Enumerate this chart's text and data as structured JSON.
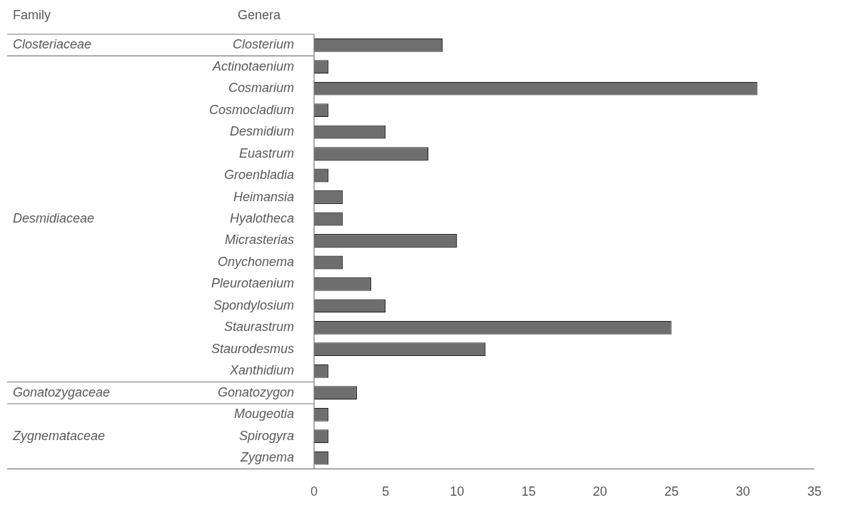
{
  "chart_data": {
    "type": "bar",
    "orientation": "horizontal",
    "ylabel": "Genera",
    "categories": [
      "Closterium",
      "Actinotaenium",
      "Cosmarium",
      "Cosmocladium",
      "Desmidium",
      "Euastrum",
      "Groenbladia",
      "Heimansia",
      "Hyalotheca",
      "Micrasterias",
      "Onychonema",
      "Pleurotaenium",
      "Spondylosium",
      "Staurastrum",
      "Staurodesmus",
      "Xanthidium",
      "Gonatozygon",
      "Mougeotia",
      "Spirogyra",
      "Zygnema"
    ],
    "values": [
      9,
      1,
      31,
      1,
      5,
      8,
      1,
      2,
      2,
      10,
      2,
      4,
      5,
      25,
      12,
      1,
      3,
      1,
      1,
      1
    ],
    "color": "#6e6e6e",
    "xlim": [
      0,
      35
    ],
    "xticks": [
      0,
      5,
      10,
      15,
      20,
      25,
      30,
      35
    ],
    "grid": false,
    "legend": false,
    "annotations": [
      "Family",
      "Closteriaceae",
      "Desmidiaceae",
      "Gonatozygaceae",
      "Zygnemataceae"
    ]
  }
}
